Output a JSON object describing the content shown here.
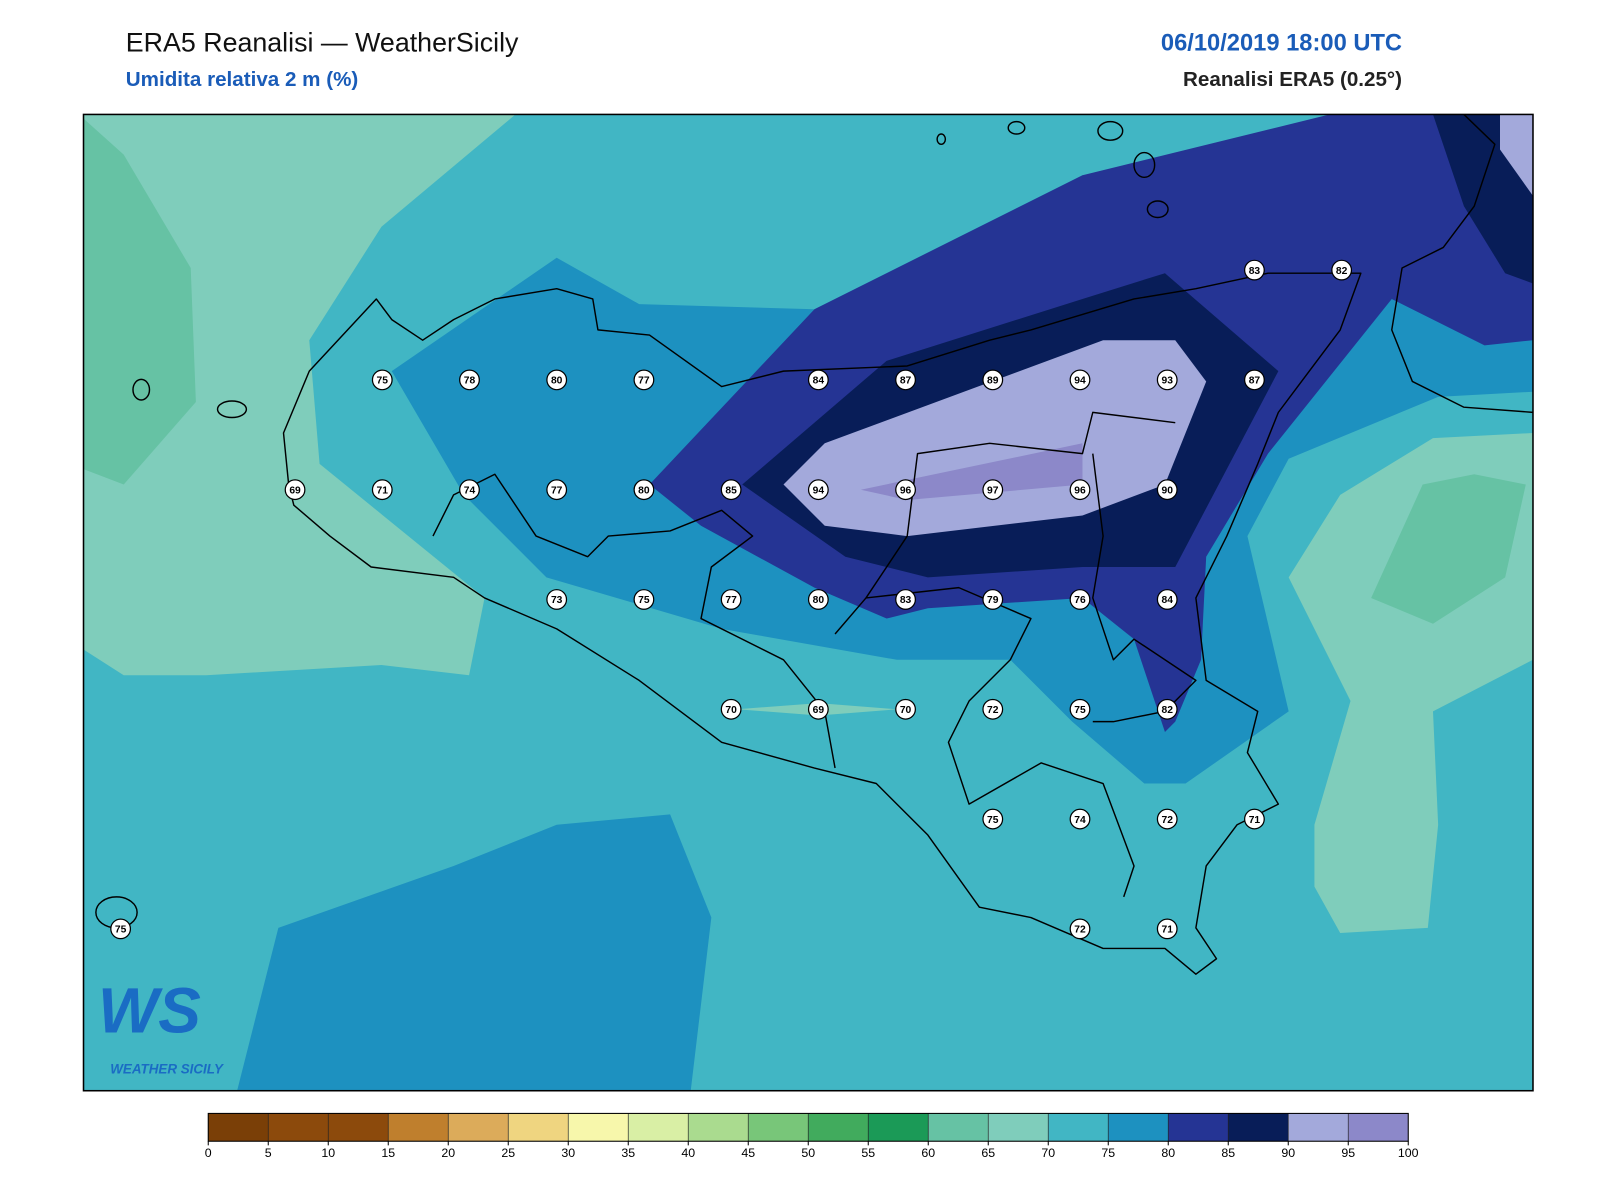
{
  "header": {
    "title": "ERA5 Reanalisi — WeatherSicily",
    "subtitle": "Umidita relativa 2 m (%)",
    "datetime": "06/10/2019 18:00 UTC",
    "source": "Reanalisi ERA5 (0.25°)"
  },
  "stations": {
    "rows": [
      [
        null,
        null,
        null,
        null,
        null,
        null,
        null,
        null,
        null,
        null,
        null,
        null,
        null,
        83,
        82
      ],
      [
        null,
        null,
        null,
        75,
        78,
        80,
        77,
        null,
        84,
        87,
        89,
        94,
        93,
        87,
        null
      ],
      [
        null,
        null,
        69,
        71,
        74,
        77,
        80,
        85,
        94,
        96,
        97,
        96,
        90,
        null,
        null
      ],
      [
        null,
        null,
        null,
        null,
        null,
        73,
        75,
        77,
        80,
        83,
        79,
        76,
        84,
        null,
        null
      ],
      [
        null,
        null,
        null,
        null,
        null,
        null,
        null,
        70,
        69,
        70,
        72,
        75,
        82,
        null,
        null
      ],
      [
        null,
        null,
        null,
        null,
        null,
        null,
        null,
        null,
        null,
        null,
        75,
        74,
        72,
        71,
        null
      ],
      [
        75,
        null,
        null,
        null,
        null,
        null,
        null,
        null,
        null,
        null,
        null,
        72,
        71,
        null,
        null
      ]
    ]
  },
  "colorbar": {
    "ticks": [
      0,
      5,
      10,
      15,
      20,
      25,
      30,
      35,
      40,
      45,
      50,
      55,
      60,
      65,
      70,
      75,
      80,
      85,
      90,
      95,
      100
    ],
    "colors": [
      "#7a3f07",
      "#8c4a0c",
      "#8c4a0c",
      "#bf7f2d",
      "#dcab5a",
      "#efd580",
      "#f7f7ab",
      "#d9efa5",
      "#aadb8f",
      "#78c679",
      "#41ab5d",
      "#1b9a57",
      "#66c2a4",
      "#7fcdbb",
      "#41b6c4",
      "#1d91c0",
      "#253494",
      "#081d58",
      "#a3a9db",
      "#8c88c9"
    ]
  },
  "logo": {
    "mark": "WS",
    "name": "WEATHER SICILY"
  }
}
